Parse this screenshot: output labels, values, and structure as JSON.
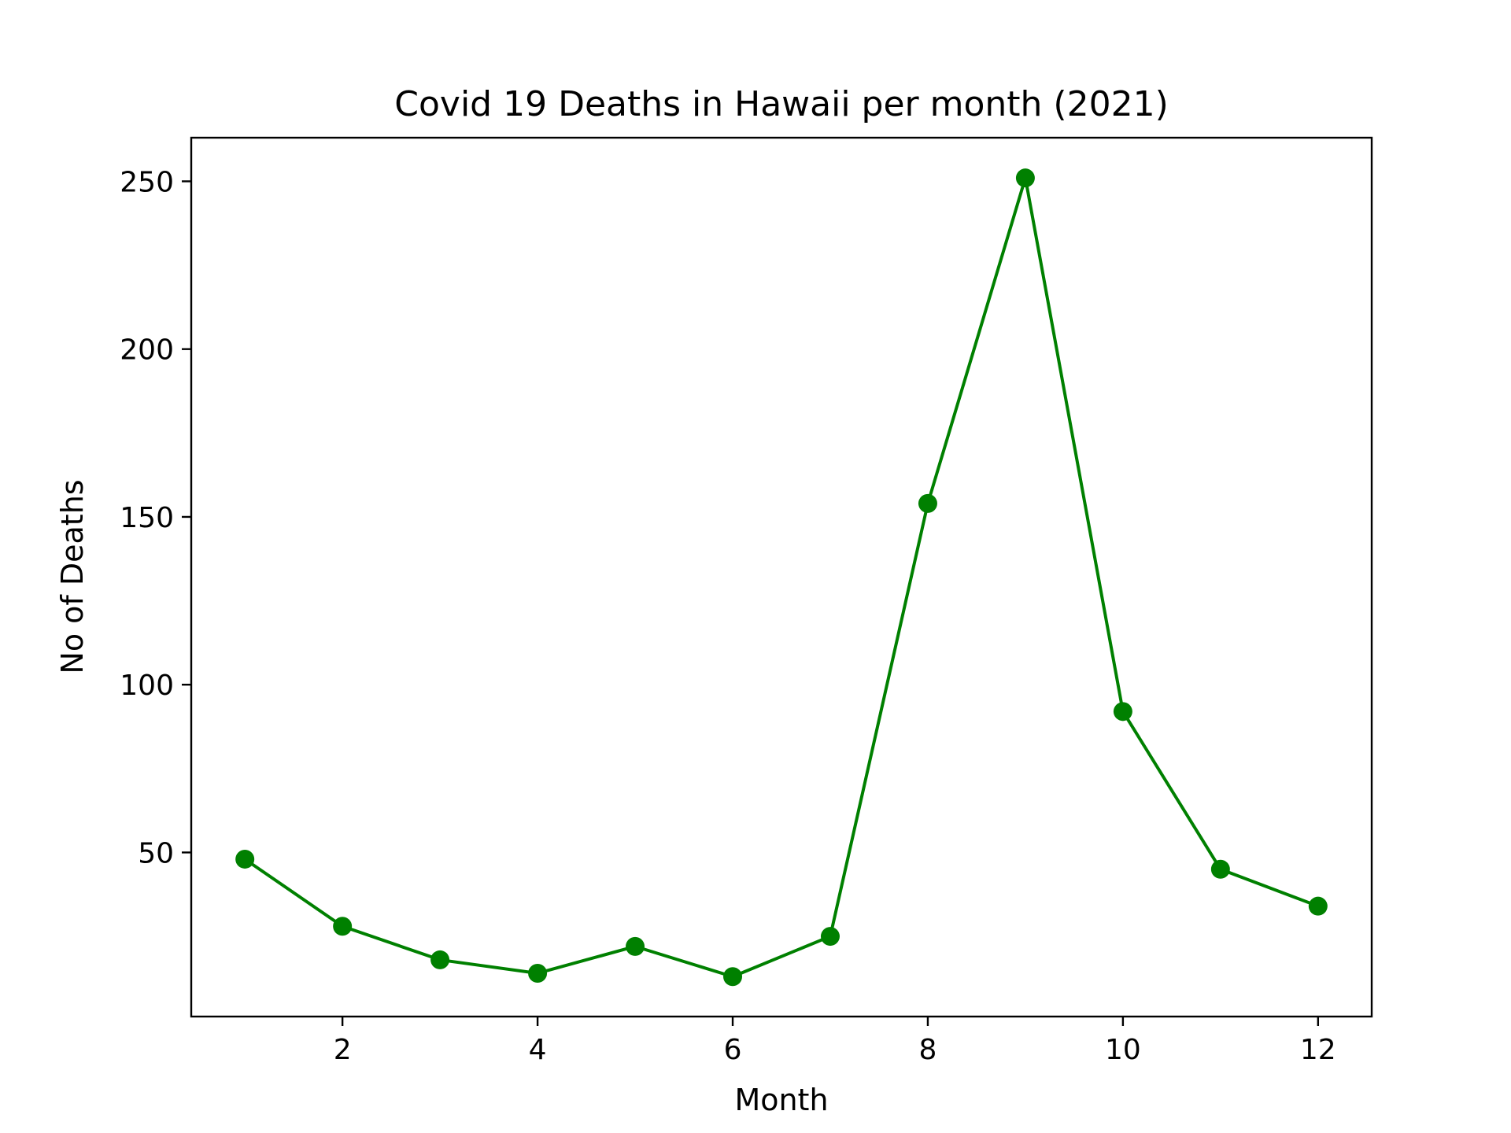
{
  "chart_data": {
    "type": "line",
    "title": "Covid 19 Deaths in Hawaii per month (2021)",
    "xlabel": "Month",
    "ylabel": "No of Deaths",
    "x": [
      1,
      2,
      3,
      4,
      5,
      6,
      7,
      8,
      9,
      10,
      11,
      12
    ],
    "series": [
      {
        "values": [
          48,
          28,
          18,
          14,
          22,
          13,
          25,
          154,
          251,
          92,
          45,
          34
        ],
        "color": "#008000",
        "marker": "circle"
      }
    ],
    "xlim": [
      0.45,
      12.55
    ],
    "ylim": [
      1.1,
      263
    ],
    "xticks": [
      2,
      4,
      6,
      8,
      10,
      12
    ],
    "yticks": [
      50,
      100,
      150,
      200,
      250
    ],
    "grid": false,
    "legend": "none"
  }
}
